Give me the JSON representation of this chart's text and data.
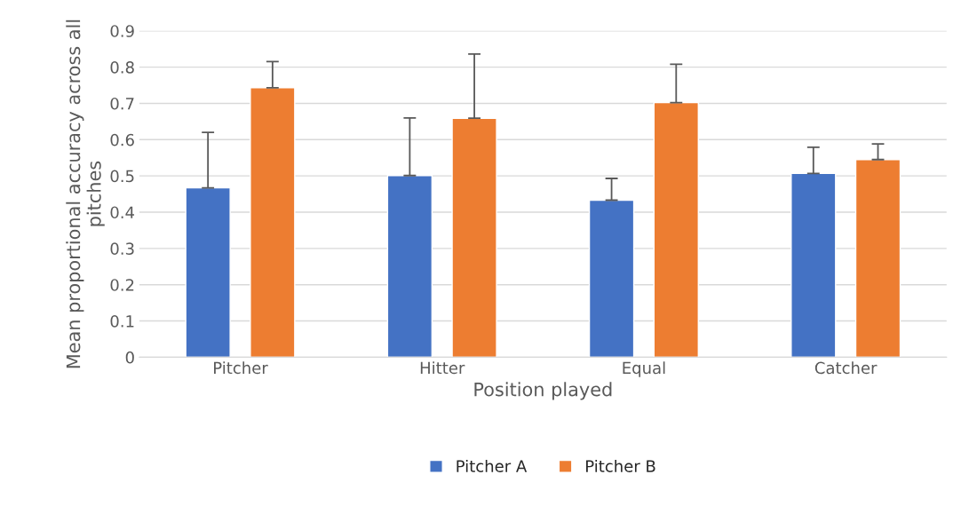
{
  "chart_data": {
    "type": "bar",
    "xlabel": "Position played",
    "ylabel": "Mean proportional accuracy across all pitches",
    "categories": [
      "Pitcher",
      "Hitter",
      "Equal",
      "Catcher"
    ],
    "series": [
      {
        "name": "Pitcher A",
        "color": "#4472c4",
        "values": [
          0.467,
          0.501,
          0.433,
          0.507
        ],
        "errors": [
          [
            0.467,
            0.62
          ],
          [
            0.501,
            0.66
          ],
          [
            0.433,
            0.493
          ],
          [
            0.507,
            0.579
          ]
        ]
      },
      {
        "name": "Pitcher B",
        "color": "#ed7d31",
        "values": [
          0.743,
          0.659,
          0.702,
          0.545
        ],
        "errors": [
          [
            0.743,
            0.815
          ],
          [
            0.659,
            0.836
          ],
          [
            0.702,
            0.808
          ],
          [
            0.545,
            0.588
          ]
        ]
      }
    ],
    "ylim": [
      0,
      0.9
    ],
    "yticks": [
      0,
      0.1,
      0.2,
      0.3,
      0.4,
      0.5,
      0.6,
      0.7,
      0.8,
      0.9
    ],
    "grid": "y",
    "legend": "bottom"
  }
}
